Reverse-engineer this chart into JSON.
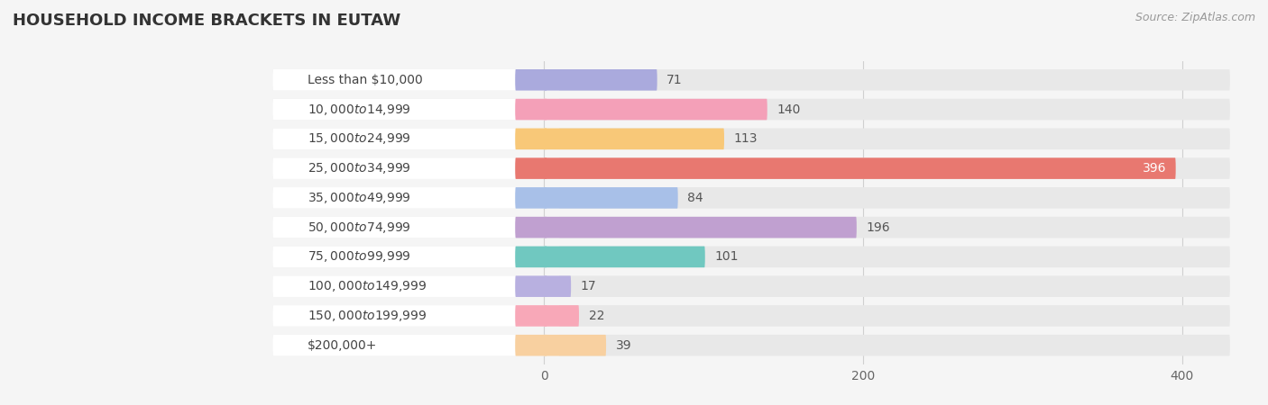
{
  "title": "HOUSEHOLD INCOME BRACKETS IN EUTAW",
  "source": "Source: ZipAtlas.com",
  "categories": [
    "Less than $10,000",
    "$10,000 to $14,999",
    "$15,000 to $24,999",
    "$25,000 to $34,999",
    "$35,000 to $49,999",
    "$50,000 to $74,999",
    "$75,000 to $99,999",
    "$100,000 to $149,999",
    "$150,000 to $199,999",
    "$200,000+"
  ],
  "values": [
    71,
    140,
    113,
    396,
    84,
    196,
    101,
    17,
    22,
    39
  ],
  "bar_colors": [
    "#aaaadd",
    "#f4a0b8",
    "#f8c878",
    "#e87870",
    "#a8c0e8",
    "#c0a0d0",
    "#70c8c0",
    "#b8b0e0",
    "#f8a8b8",
    "#f8d0a0"
  ],
  "background_color": "#f5f5f5",
  "bar_background_color": "#e8e8e8",
  "label_area": -170,
  "xlim_min": -170,
  "xlim_max": 430,
  "xticks": [
    0,
    200,
    400
  ],
  "title_fontsize": 13,
  "label_fontsize": 10,
  "value_fontsize": 10,
  "bar_height": 0.72,
  "rounding_size": 0.34
}
